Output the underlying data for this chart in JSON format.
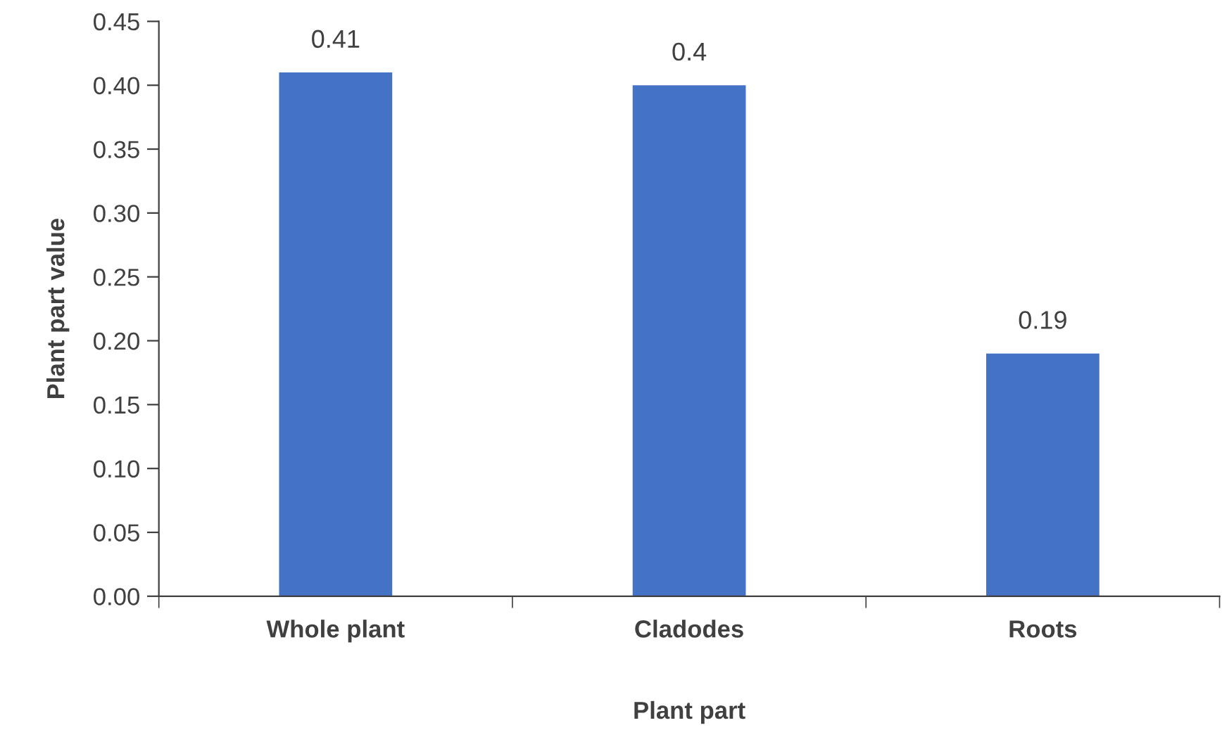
{
  "chart_data": {
    "type": "bar",
    "xlabel": "Plant part",
    "ylabel": "Plant part value",
    "categories": [
      "Whole plant",
      "Cladodes",
      "Roots"
    ],
    "values": [
      0.41,
      0.4,
      0.19
    ],
    "color": "#4472c4",
    "data_labels": true,
    "ylim": [
      0,
      0.45
    ],
    "yticks": [
      {
        "value": 0,
        "label": "0.00"
      },
      {
        "value": 0.05,
        "label": "0.05"
      },
      {
        "value": 0.1,
        "label": "0.10"
      },
      {
        "value": 0.15,
        "label": "0.15"
      },
      {
        "value": 0.2,
        "label": "0.20"
      },
      {
        "value": 0.25,
        "label": "0.25"
      },
      {
        "value": 0.3,
        "label": "0.30"
      },
      {
        "value": 0.35,
        "label": "0.35"
      },
      {
        "value": 0.4,
        "label": "0.40"
      },
      {
        "value": 0.45,
        "label": "0.45"
      }
    ],
    "grid": false,
    "legend": false
  }
}
